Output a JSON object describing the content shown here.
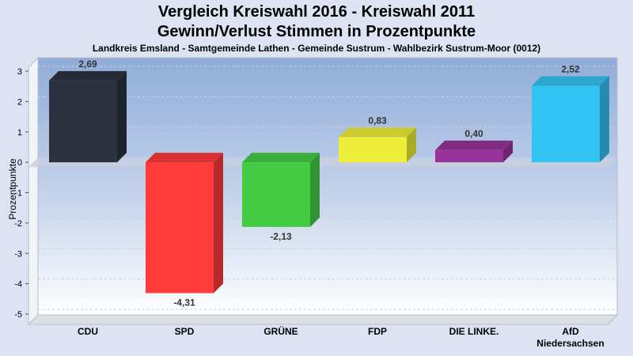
{
  "chart_data": {
    "type": "bar",
    "title": "Vergleich Kreiswahl 2016 - Kreiswahl 2011",
    "title2": "Gewinn/Verlust Stimmen in Prozentpunkte",
    "subtitle": "Landkreis Emsland - Samtgemeinde Lathen - Gemeinde Sustrum - Wahlbezirk Sustrum-Moor (0012)",
    "ylabel": "Prozentpunkte",
    "ylim": [
      -5,
      3
    ],
    "yticks": [
      "3",
      "2",
      "1",
      "0",
      "-1",
      "-2",
      "-3",
      "-4",
      "-5"
    ],
    "grid": true,
    "categories": [
      "CDU",
      "SPD",
      "GRÜNE",
      "FDP",
      "DIE LINKE.",
      "AfD Niedersachsen"
    ],
    "category_lines": [
      [
        "CDU"
      ],
      [
        "SPD"
      ],
      [
        "GRÜNE"
      ],
      [
        "FDP"
      ],
      [
        "DIE LINKE."
      ],
      [
        "AfD",
        "Niedersachsen"
      ]
    ],
    "values": [
      2.69,
      -4.31,
      -2.13,
      0.83,
      0.4,
      2.52
    ],
    "value_labels": [
      "2,69",
      "-4,31",
      "-2,13",
      "0,83",
      "0,40",
      "2,52"
    ],
    "colors": [
      "#2b323e",
      "#ff3a3a",
      "#44cc44",
      "#eeee3a",
      "#993399",
      "#33c3f3"
    ]
  }
}
